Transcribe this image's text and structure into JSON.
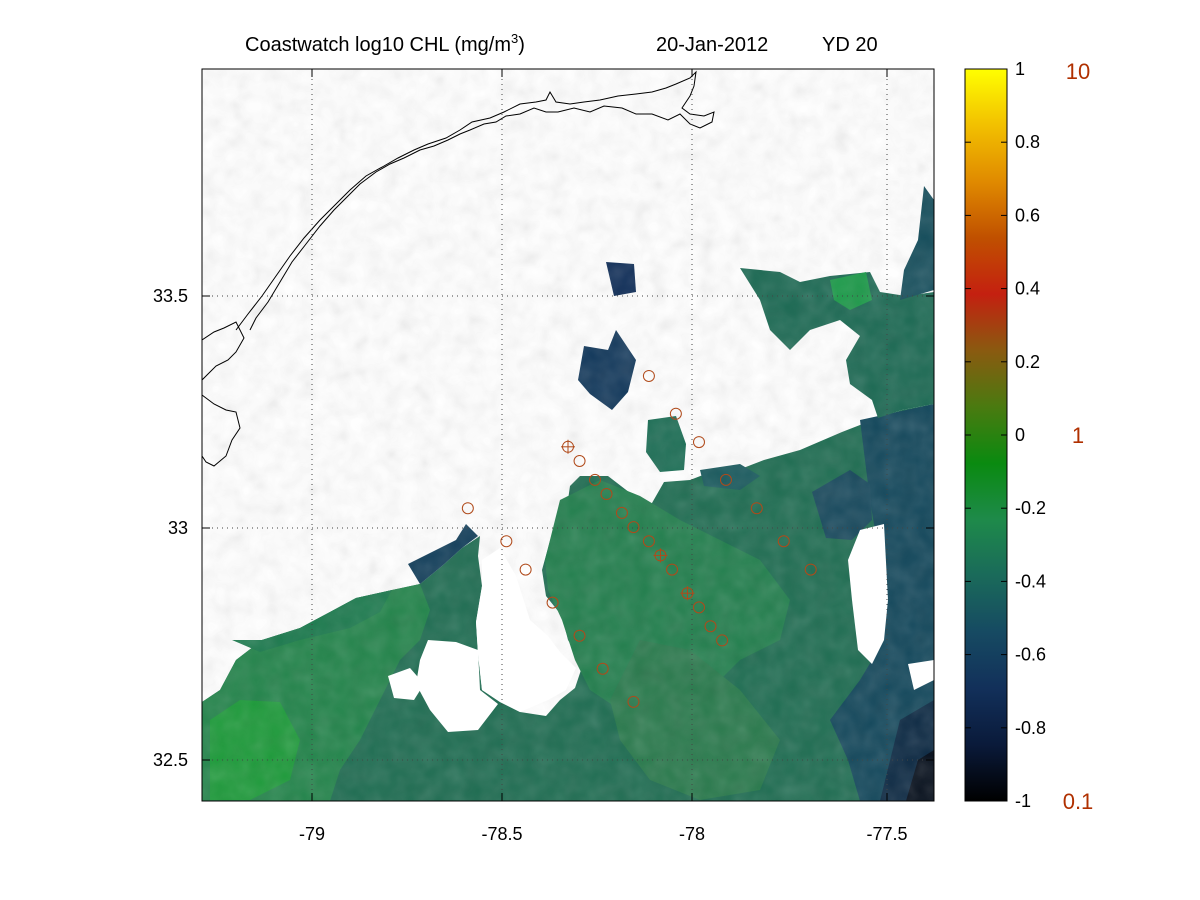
{
  "title": {
    "main": "Coastwatch  log10  CHL (mg/m",
    "sup": "3",
    "close": ")",
    "date": "20-Jan-2012",
    "yd": "YD 20"
  },
  "colors": {
    "land_coast": "#000000",
    "missing": "#ffffff",
    "station_marker": "#b04a1a",
    "secondary_labels": "#b03000"
  },
  "chart_data": {
    "type": "heatmap",
    "variable": "log10 CHL (mg/m3)",
    "x_ticks": [
      "-79",
      "-78.5",
      "-78",
      "-77.5"
    ],
    "y_ticks": [
      "33.5",
      "33",
      "32.5"
    ],
    "xlim": [
      -79.28,
      -77.38
    ],
    "ylim": [
      32.42,
      33.97
    ],
    "grid": true,
    "colorbar": {
      "range": [
        -1,
        1
      ],
      "ticks": [
        "1",
        "0.8",
        "0.6",
        "0.4",
        "0.2",
        "0",
        "-0.2",
        "-0.4",
        "-0.6",
        "-0.8",
        "-1"
      ],
      "secondary_ticks": [
        {
          "label": "10",
          "at": 1
        },
        {
          "label": "1",
          "at": 0
        },
        {
          "label": "0.1",
          "at": -1
        }
      ],
      "colormap": [
        "#000000",
        "#0a1a3a",
        "#12305a",
        "#164a62",
        "#1a6a5a",
        "#1e8a4a",
        "#0a8a10",
        "#4a7a10",
        "#8a5a10",
        "#c42010",
        "#c05000",
        "#e08a00",
        "#f2c000",
        "#ffff00"
      ]
    },
    "stations": [
      {
        "lon": -78.12,
        "lat": 33.32
      },
      {
        "lon": -78.05,
        "lat": 33.24
      },
      {
        "lon": -77.99,
        "lat": 33.18
      },
      {
        "lon": -78.33,
        "lat": 33.17,
        "marked": true
      },
      {
        "lon": -78.3,
        "lat": 33.14
      },
      {
        "lon": -78.26,
        "lat": 33.1
      },
      {
        "lon": -78.23,
        "lat": 33.07
      },
      {
        "lon": -78.19,
        "lat": 33.03
      },
      {
        "lon": -78.16,
        "lat": 33.0
      },
      {
        "lon": -78.12,
        "lat": 32.97
      },
      {
        "lon": -78.09,
        "lat": 32.94,
        "marked": true
      },
      {
        "lon": -78.06,
        "lat": 32.91
      },
      {
        "lon": -78.02,
        "lat": 32.86,
        "marked": true
      },
      {
        "lon": -77.99,
        "lat": 32.83
      },
      {
        "lon": -77.96,
        "lat": 32.79
      },
      {
        "lon": -77.93,
        "lat": 32.76
      },
      {
        "lon": -77.92,
        "lat": 33.1
      },
      {
        "lon": -77.84,
        "lat": 33.04
      },
      {
        "lon": -77.77,
        "lat": 32.97
      },
      {
        "lon": -77.7,
        "lat": 32.91
      },
      {
        "lon": -78.59,
        "lat": 33.04
      },
      {
        "lon": -78.49,
        "lat": 32.97
      },
      {
        "lon": -78.44,
        "lat": 32.91
      },
      {
        "lon": -78.37,
        "lat": 32.84
      },
      {
        "lon": -78.3,
        "lat": 32.77
      },
      {
        "lon": -78.24,
        "lat": 32.7
      },
      {
        "lon": -78.16,
        "lat": 32.63
      }
    ]
  }
}
